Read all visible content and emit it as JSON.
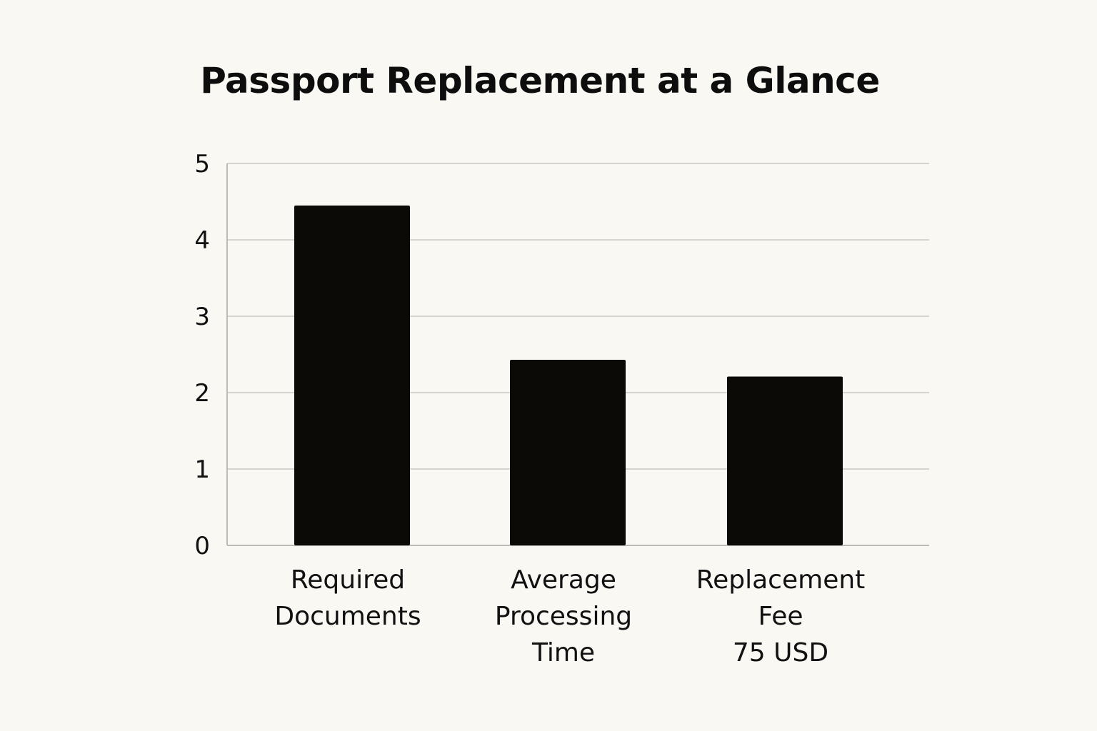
{
  "chart_data": {
    "type": "bar",
    "title": "Passport Replacement at a Glance",
    "xlabel": "",
    "ylabel": "",
    "ylim": [
      0,
      5
    ],
    "yticks": [
      0,
      1,
      2,
      3,
      4,
      5
    ],
    "grid": true,
    "categories": [
      [
        "Required",
        "Documents"
      ],
      [
        "Average",
        "Processing",
        "Time"
      ],
      [
        "Replacement",
        "Fee",
        "75 USD"
      ]
    ],
    "values": [
      4.45,
      2.43,
      2.21
    ],
    "colors": {
      "bar": "#0b0a07"
    }
  }
}
